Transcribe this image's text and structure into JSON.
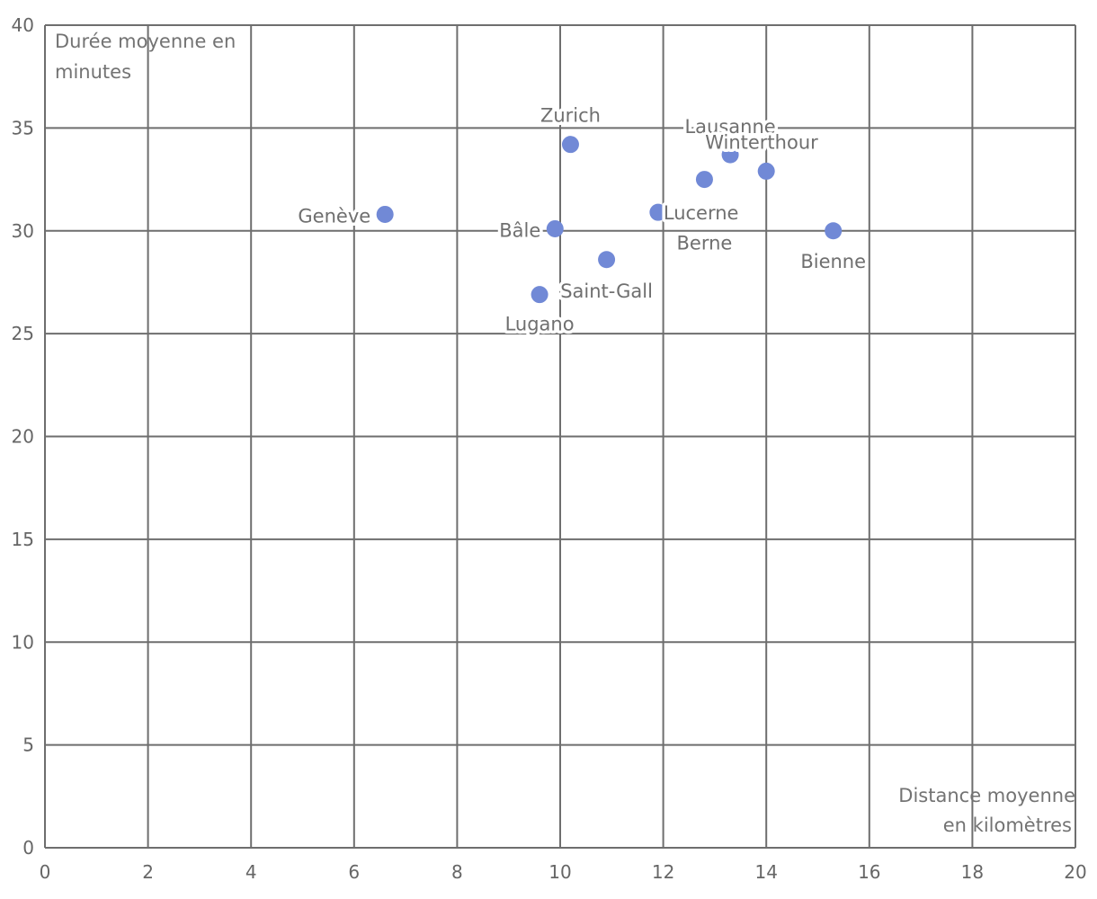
{
  "chart_data": {
    "type": "scatter",
    "title": "",
    "xlabel": [
      "Distance moyenne",
      "en kilomètres"
    ],
    "ylabel": [
      "Durée moyenne en",
      "minutes"
    ],
    "xlim": [
      0,
      20
    ],
    "ylim": [
      0,
      40
    ],
    "x_ticks": [
      0,
      2,
      4,
      6,
      8,
      10,
      12,
      14,
      16,
      18,
      20
    ],
    "y_ticks": [
      0,
      5,
      10,
      15,
      20,
      25,
      30,
      35,
      40
    ],
    "grid": true,
    "legend": false,
    "point_color": "#7189d6",
    "points": [
      {
        "label": "Genève",
        "x": 6.6,
        "y": 30.8
      },
      {
        "label": "Zurich",
        "x": 10.2,
        "y": 34.2
      },
      {
        "label": "Bâle",
        "x": 9.9,
        "y": 30.1
      },
      {
        "label": "Saint-Gall",
        "x": 10.9,
        "y": 28.6
      },
      {
        "label": "Lugano",
        "x": 9.6,
        "y": 26.9
      },
      {
        "label": "Lucerne",
        "x": 11.9,
        "y": 30.9
      },
      {
        "label": "Berne",
        "x": 12.8,
        "y": 32.5
      },
      {
        "label": "Lausanne",
        "x": 13.3,
        "y": 33.7
      },
      {
        "label": "Winterthour",
        "x": 14.0,
        "y": 32.9
      },
      {
        "label": "Bienne",
        "x": 15.3,
        "y": 30.0
      }
    ]
  }
}
